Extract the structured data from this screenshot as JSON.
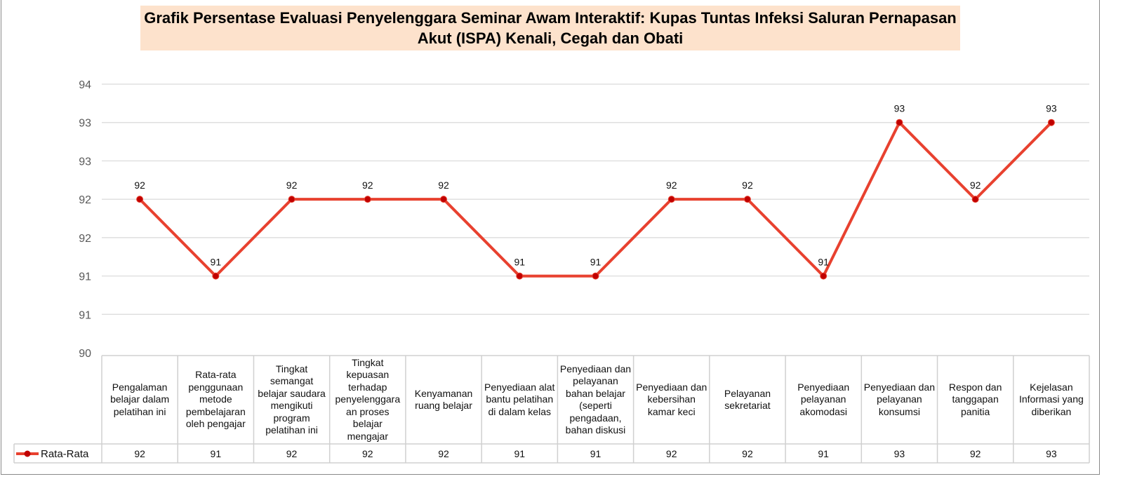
{
  "chart_data": {
    "type": "line",
    "title": "Grafik Persentase Evaluasi Penyelenggara Seminar Awam Interaktif: Kupas Tuntas Infeksi Saluran Pernapasan Akut (ISPA) Kenali, Cegah dan Obati",
    "ylim": [
      90,
      93.5
    ],
    "y_ticks": [
      90,
      90.5,
      91,
      91.5,
      92,
      92.5,
      93,
      93.5
    ],
    "y_tick_labels": [
      "90",
      "91",
      "91",
      "92",
      "92",
      "93",
      "93",
      "94"
    ],
    "grid": true,
    "legend_placement": "data-table-left",
    "data_table": true,
    "categories": [
      "Pengalaman belajar dalam pelatihan ini",
      "Rata-rata penggunaan metode pembelajaran oleh pengajar",
      "Tingkat semangat belajar saudara mengikuti program pelatihan ini",
      "Tingkat kepuasan terhadap penyelenggara an proses belajar mengajar",
      "Kenyamanan ruang belajar",
      "Penyediaan alat bantu pelatihan di dalam kelas",
      "Penyediaan dan pelayanan bahan belajar (seperti pengadaan, bahan diskusi",
      "Penyediaan dan kebersihan kamar keci",
      "Pelayanan sekretariat",
      "Penyediaan pelayanan akomodasi",
      "Penyediaan dan pelayanan konsumsi",
      "Respon dan tanggapan panitia",
      "Kejelasan Informasi yang diberikan"
    ],
    "series": [
      {
        "name": "Rata-Rata",
        "color": "#e8412f",
        "marker_color": "#c00000",
        "values": [
          92,
          91,
          92,
          92,
          92,
          91,
          91,
          92,
          92,
          91,
          93,
          92,
          93
        ],
        "labels": [
          "92",
          "91",
          "92",
          "92",
          "92",
          "91",
          "91",
          "92",
          "92",
          "91",
          "93",
          "92",
          "93"
        ]
      }
    ]
  },
  "colors": {
    "title_bg": "#fde2cc",
    "grid": "#d9d9d9"
  }
}
